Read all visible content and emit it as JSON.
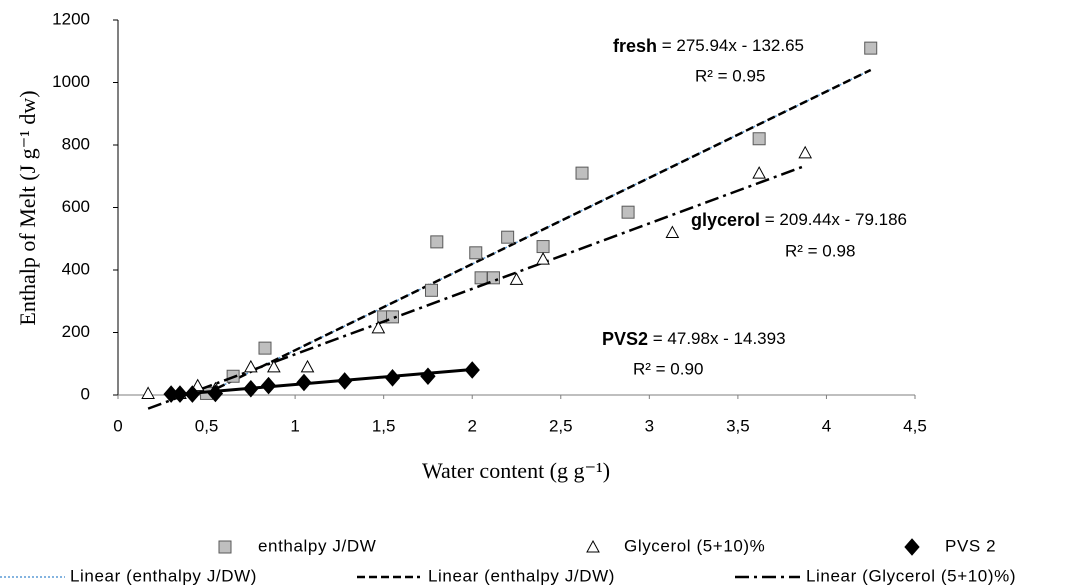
{
  "chart_data": {
    "type": "scatter",
    "xlabel": "Water content (g g⁻¹)",
    "ylabel": "Enthalp of Melt (J g⁻¹ dw)",
    "xlim": [
      0,
      4.5
    ],
    "ylim": [
      0,
      1200
    ],
    "xticks": [
      0,
      {
        "value": 0.5,
        "label": "0,5"
      },
      1,
      {
        "value": 1.5,
        "label": "1,5"
      },
      2,
      {
        "value": 2.5,
        "label": "2,5"
      },
      3,
      {
        "value": 3.5,
        "label": "3,5"
      },
      4,
      {
        "value": 4.5,
        "label": "4,5"
      }
    ],
    "yticks": [
      0,
      200,
      400,
      600,
      800,
      1000,
      1200
    ],
    "grid": false,
    "legend": "bottom",
    "series": [
      {
        "name": "enthalpy J/DW",
        "marker": "square",
        "color": "#bfbfbf",
        "x": [
          0.5,
          0.65,
          0.83,
          1.5,
          1.55,
          1.77,
          1.8,
          2.02,
          2.05,
          2.12,
          2.2,
          2.4,
          2.62,
          2.88,
          3.62,
          4.25
        ],
        "values": [
          5,
          60,
          150,
          250,
          250,
          335,
          490,
          455,
          375,
          375,
          505,
          475,
          710,
          585,
          820,
          1110
        ],
        "trendlines": [
          {
            "name": "Linear (enthalpy J/DW)",
            "style": "dotted",
            "color": "#5b9bd5"
          },
          {
            "name": "Linear (enthalpy J/DW)",
            "style": "dashed",
            "color": "#000000"
          }
        ],
        "equation": {
          "bold": "fresh",
          "text": " = 275.94x - 132.65",
          "r2": "R² = 0.95",
          "slope": 275.94,
          "intercept": -132.65
        }
      },
      {
        "name": "Glycerol (5+10)%",
        "marker": "triangle",
        "color": "#ffffff",
        "x": [
          0.17,
          0.35,
          0.45,
          0.55,
          0.75,
          0.88,
          1.07,
          1.47,
          2.25,
          2.4,
          3.13,
          3.62,
          3.88
        ],
        "values": [
          5,
          5,
          30,
          20,
          90,
          90,
          90,
          215,
          370,
          435,
          520,
          710,
          775
        ],
        "trendlines": [
          {
            "name": "Linear (Glycerol (5+10)%)",
            "style": "dashdot",
            "color": "#000000"
          }
        ],
        "equation": {
          "bold": "glycerol",
          "text": " = 209.44x - 79.186",
          "r2": "R² = 0.98",
          "slope": 209.44,
          "intercept": -79.186
        }
      },
      {
        "name": "PVS 2",
        "marker": "diamond",
        "color": "#000000",
        "x": [
          0.3,
          0.35,
          0.42,
          0.55,
          0.75,
          0.85,
          1.05,
          1.28,
          1.55,
          1.75,
          2.0
        ],
        "values": [
          3,
          3,
          3,
          5,
          20,
          30,
          40,
          45,
          55,
          60,
          80
        ],
        "trendlines": [
          {
            "style": "solid",
            "color": "#000000"
          }
        ],
        "equation": {
          "bold": "PVS2",
          "text": " = 47.98x - 14.393",
          "r2": "R² = 0.90",
          "slope": 47.98,
          "intercept": -14.393
        }
      }
    ]
  }
}
